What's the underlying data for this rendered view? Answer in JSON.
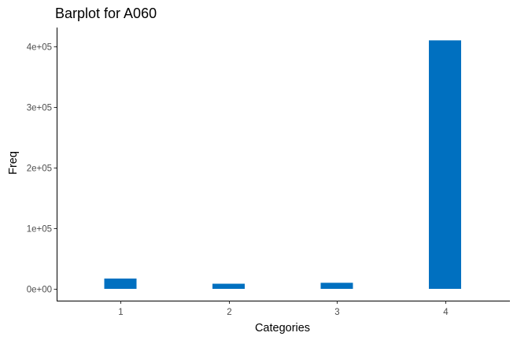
{
  "chart_data": {
    "type": "bar",
    "title": "Barplot for A060",
    "xlabel": "Categories",
    "ylabel": "Freq",
    "categories": [
      "1",
      "2",
      "3",
      "4"
    ],
    "values": [
      17000,
      8500,
      10000,
      410000
    ],
    "ylim": [
      0,
      420000
    ],
    "y_ticks": [
      0,
      100000,
      200000,
      300000,
      400000
    ],
    "y_tick_labels": [
      "0e+00",
      "1e+05",
      "2e+05",
      "3e+05",
      "4e+05"
    ],
    "bar_color": "#0070C0",
    "grid": false,
    "legend": "none"
  }
}
